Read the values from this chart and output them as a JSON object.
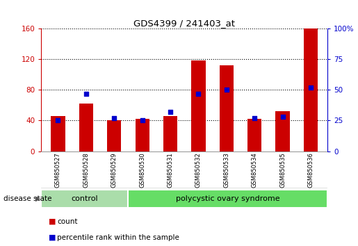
{
  "title": "GDS4399 / 241403_at",
  "samples": [
    "GSM850527",
    "GSM850528",
    "GSM850529",
    "GSM850530",
    "GSM850531",
    "GSM850532",
    "GSM850533",
    "GSM850534",
    "GSM850535",
    "GSM850536"
  ],
  "count_values": [
    46,
    62,
    40,
    42,
    46,
    118,
    112,
    42,
    52,
    160
  ],
  "percentile_values": [
    25,
    47,
    27,
    25,
    32,
    47,
    50,
    27,
    28,
    52
  ],
  "left_ylim": [
    0,
    160
  ],
  "right_ylim": [
    0,
    100
  ],
  "left_yticks": [
    0,
    40,
    80,
    120,
    160
  ],
  "right_yticks": [
    0,
    25,
    50,
    75,
    100
  ],
  "right_yticklabels": [
    "0",
    "25",
    "50",
    "75",
    "100%"
  ],
  "left_ytick_color": "#cc0000",
  "right_ytick_color": "#0000cc",
  "bar_color": "#cc0000",
  "dot_color": "#0000cc",
  "grid_color": "#000000",
  "control_label": "control",
  "pcos_label": "polycystic ovary syndrome",
  "control_color": "#aaddaa",
  "pcos_color": "#66dd66",
  "disease_state_label": "disease state",
  "legend_count_label": "count",
  "legend_percentile_label": "percentile rank within the sample",
  "bg_color": "#ffffff",
  "plot_bg_color": "#ffffff",
  "sample_bg_color": "#cccccc",
  "sample_border_color": "#666666"
}
